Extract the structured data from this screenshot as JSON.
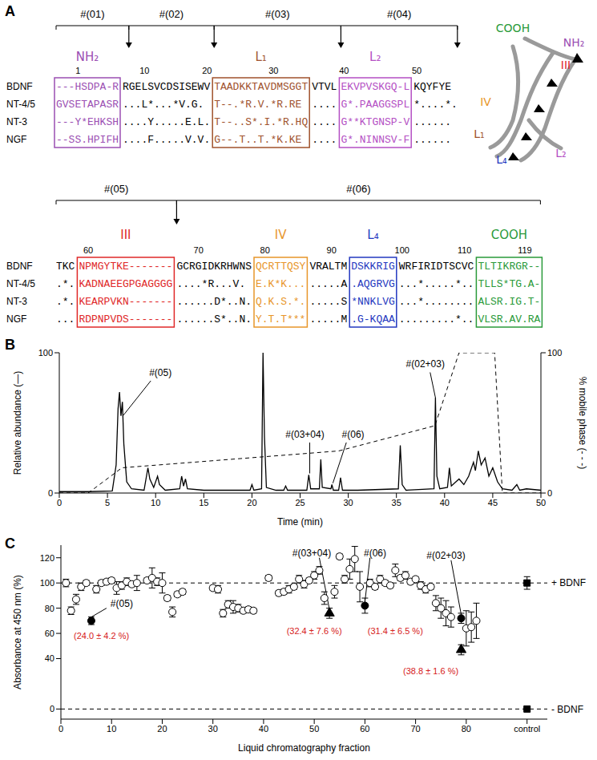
{
  "panel_a": {
    "letter": "A",
    "rows": [
      "BDNF",
      "NT-4/5",
      "NT-3",
      "NGF"
    ],
    "blocks": [
      {
        "fragments": [
          "#(01)",
          "#(02)",
          "#(03)",
          "#(04)"
        ],
        "numbers": [
          1,
          10,
          20,
          30,
          40,
          50
        ],
        "segments": [
          {
            "region": "NH₂",
            "color": "#9b4fb3",
            "seqs": [
              "---HSDPA-R",
              "GVSETAPASR",
              "---Y*EHKSH",
              "--SS.HPIFH"
            ]
          },
          {
            "seqs": [
              "RGELSVCDSISEWV",
              "...L*...*V.G.",
              "....Y.....E.L.",
              "....F.....V.V."
            ]
          },
          {
            "region": "L₁",
            "color": "#a0522d",
            "seqs": [
              "TAADKKTAVDMSGGT",
              "T--.*R.V.*R.RE",
              "T--..S*.I.*R.HQ",
              "G--.T..T.*K.KE"
            ]
          },
          {
            "seqs": [
              "VTVL",
              "....",
              "....",
              "...."
            ]
          },
          {
            "region": "L₂",
            "color": "#b44fc4",
            "seqs": [
              "EKVPVSKGQ-L",
              "G*.PAAGGSPL",
              "G**KTGNSP-V",
              "G*.NINNSV-F"
            ]
          },
          {
            "seqs": [
              "KQYFYE",
              "*....*.",
              "......",
              "......"
            ]
          }
        ]
      },
      {
        "fragments": [
          "#(05)",
          "#(06)"
        ],
        "numbers": [
          60,
          70,
          80,
          90,
          100,
          110,
          119
        ],
        "segments": [
          {
            "seqs": [
              "TKC",
              ".*.",
              ".*.",
              "..."
            ]
          },
          {
            "region": "III",
            "color": "#e02828",
            "seqs": [
              "NPMGYTKE-------",
              "KADNAEEGPGAGGGG",
              "KEARPVKN-------",
              "RDPNPVDS-------"
            ]
          },
          {
            "seqs": [
              "GCRGIDKRHWNS",
              "....*R...V.",
              "......D*..N.",
              "......S*..N."
            ]
          },
          {
            "region": "IV",
            "color": "#e8962a",
            "seqs": [
              "QCRTTQSY",
              "E.K*K...",
              "Q.K.S.*.",
              "Y.T.T***"
            ]
          },
          {
            "seqs": [
              "VRALTM",
              ".....A",
              ".....S",
              ".....M"
            ]
          },
          {
            "region": "L₄",
            "color": "#2338c0",
            "seqs": [
              "DSKKRIG",
              ".AQGRVG",
              "*NNKLVG",
              ".G-KQAA"
            ]
          },
          {
            "seqs": [
              "WRFIRIDTSCVC",
              "...*.....*..",
              "...*........",
              ".........*.."
            ]
          },
          {
            "region": "COOH",
            "color": "#2a9a3a",
            "seqs": [
              "TLTIKRGR--",
              "TLLS*TG.A-",
              "ALSR.IG.T-",
              "VLSR.AV.RA"
            ]
          }
        ]
      }
    ],
    "structure_labels": [
      {
        "text": "COOH",
        "color": "#2a9a3a"
      },
      {
        "text": "NH₂",
        "color": "#9b4fb3"
      },
      {
        "text": "III",
        "color": "#e02828"
      },
      {
        "text": "IV",
        "color": "#e8962a"
      },
      {
        "text": "L₁",
        "color": "#a0522d"
      },
      {
        "text": "L₂",
        "color": "#b44fc4"
      },
      {
        "text": "L₄",
        "color": "#2338c0"
      }
    ]
  },
  "chart_data": [
    {
      "panel": "B",
      "type": "line",
      "xlabel": "Time (min)",
      "ylabel": "Relative abundance (—)",
      "y2label": "% mobile phase (- - -)",
      "xlim": [
        0,
        50
      ],
      "xticks": [
        0,
        5,
        10,
        15,
        20,
        25,
        30,
        35,
        40,
        45,
        50
      ],
      "ylim": [
        0,
        100
      ],
      "yticks": [
        0,
        100
      ],
      "y2lim": [
        0,
        100
      ],
      "y2ticks": [
        0,
        100
      ],
      "series": [
        {
          "axis": "y",
          "color": "#000000",
          "line_style": "solid",
          "x": [
            0,
            3,
            5.5,
            5.9,
            6.1,
            6.25,
            6.4,
            6.55,
            6.7,
            7,
            7.5,
            8.8,
            9.2,
            9.4,
            9.8,
            10.2,
            10.4,
            11,
            12.5,
            12.7,
            12.9,
            13.1,
            13.3,
            15,
            19.8,
            20,
            20.2,
            21,
            21.15,
            21.3,
            21.5,
            22.5,
            23.3,
            23.5,
            23.7,
            25.7,
            25.9,
            26.1,
            27,
            27.15,
            27.3,
            28.2,
            28.3,
            28.45,
            29,
            29.2,
            29.4,
            31,
            35.2,
            35.4,
            35.6,
            36,
            38.9,
            39.05,
            39.2,
            39.5,
            40.3,
            40.5,
            40.7,
            41.5,
            42,
            42.5,
            43,
            43.2,
            43.5,
            43.8,
            44.2,
            44.6,
            45,
            45.5,
            46,
            47,
            47.5,
            47.8,
            48.5,
            50
          ],
          "values": [
            1,
            1,
            1.5,
            20,
            60,
            72,
            55,
            65,
            35,
            8,
            3,
            2,
            18,
            10,
            4,
            12,
            6,
            2,
            3,
            12,
            5,
            10,
            3,
            2,
            2,
            6,
            2,
            3,
            100,
            40,
            4,
            2,
            2,
            5,
            2,
            2,
            13,
            3,
            3,
            24,
            4,
            3,
            6,
            2,
            2,
            11,
            2,
            2,
            3,
            34,
            6,
            2,
            3,
            68,
            12,
            3,
            4,
            18,
            5,
            10,
            6,
            12,
            22,
            16,
            30,
            20,
            25,
            12,
            18,
            8,
            3,
            2,
            6,
            2,
            3,
            2
          ]
        },
        {
          "axis": "y2",
          "color": "#000000",
          "line_style": "dashed",
          "x": [
            0,
            3,
            6.5,
            29,
            39,
            41.5,
            45.2,
            46,
            50
          ],
          "values": [
            0,
            0,
            18,
            30,
            48,
            100,
            100,
            0,
            0
          ]
        }
      ],
      "annotations": [
        {
          "text": "#(05)",
          "x": 6.6,
          "y": 55
        },
        {
          "text": "#(03+04)",
          "x": 26,
          "y": 14
        },
        {
          "text": "#(06)",
          "x": 28.4,
          "y": 7
        },
        {
          "text": "#(02+03)",
          "x": 39.05,
          "y": 68
        }
      ]
    },
    {
      "panel": "C",
      "type": "scatter",
      "xlabel": "Liquid chromatography fraction",
      "ylabel": "Absorbance at 450 nm (%)",
      "xlim": [
        0,
        96
      ],
      "xticks": [
        0,
        10,
        20,
        30,
        40,
        50,
        60,
        70,
        80,
        {
          "value": 92,
          "label": "control"
        }
      ],
      "ylim": [
        -8,
        130
      ],
      "yticks": [
        0,
        40,
        60,
        80,
        100,
        120
      ],
      "series": [
        {
          "marker": "circle_open",
          "color": "#000000",
          "x": [
            1,
            2,
            3,
            4,
            5,
            7,
            8,
            9,
            10,
            11,
            12,
            13,
            14,
            15,
            17,
            18,
            19,
            20,
            21,
            22,
            23,
            24,
            30,
            31,
            32,
            33,
            34,
            35,
            36,
            37,
            38,
            41,
            43,
            44,
            45,
            46,
            47,
            48,
            49,
            50,
            51,
            52,
            54,
            55,
            56,
            57,
            58,
            59,
            61,
            62,
            63,
            64,
            65,
            66,
            67,
            68,
            69,
            70,
            71,
            72,
            73,
            74,
            75,
            76,
            77,
            80,
            81,
            82
          ],
          "values": [
            100,
            78,
            87,
            97,
            100,
            95,
            100,
            101,
            102,
            96,
            98,
            101,
            99,
            100,
            102,
            104,
            101,
            100,
            88,
            77,
            91,
            93,
            96,
            95,
            76,
            83,
            81,
            80,
            78,
            79,
            78,
            104,
            92,
            93,
            95,
            97,
            103,
            99,
            102,
            106,
            110,
            88,
            93,
            121,
            103,
            111,
            119,
            97,
            100,
            97,
            103,
            100,
            98,
            110,
            104,
            106,
            101,
            103,
            98,
            95,
            97,
            84,
            80,
            76,
            73,
            64,
            65,
            70
          ],
          "errors": [
            3,
            3,
            4,
            3,
            2,
            3,
            2,
            2,
            2,
            5,
            3,
            3,
            2,
            6,
            2,
            8,
            3,
            8,
            2,
            4,
            2,
            2,
            2,
            3,
            3,
            3,
            5,
            3,
            2,
            2,
            2,
            2,
            2,
            2,
            3,
            2,
            3,
            3,
            2,
            3,
            3,
            5,
            5,
            2,
            3,
            8,
            10,
            12,
            3,
            2,
            3,
            2,
            2,
            5,
            2,
            3,
            2,
            2,
            3,
            3,
            2,
            6,
            8,
            10,
            8,
            14,
            12,
            14
          ]
        },
        {
          "marker": "circle",
          "color": "#000000",
          "x": [
            6,
            60,
            79
          ],
          "values": [
            70,
            82,
            72
          ],
          "errors": [
            3,
            6,
            4
          ]
        },
        {
          "marker": "triangle",
          "color": "#000000",
          "x": [
            53,
            79
          ],
          "values": [
            76,
            47
          ],
          "errors": [
            4,
            4
          ]
        },
        {
          "marker": "square",
          "color": "#000000",
          "x": [
            92,
            92
          ],
          "values": [
            100,
            0
          ],
          "errors": [
            5,
            1
          ]
        }
      ],
      "reference_lines": [
        {
          "y": 100,
          "label": "+ BDNF"
        },
        {
          "y": 0,
          "label": "- BDNF"
        }
      ],
      "annotations": [
        {
          "text": "#(05)",
          "x": 6,
          "y": 70,
          "value_text": "(24.0 ± 4.2 %)",
          "color": "#d62020"
        },
        {
          "text": "#(03+04)",
          "x": 53,
          "y": 76,
          "value_text": "(32.4 ± 7.6 %)",
          "color": "#d62020"
        },
        {
          "text": "#(06)",
          "x": 60,
          "y": 82,
          "value_text": "(31.4 ± 6.5 %)",
          "color": "#d62020"
        },
        {
          "text": "#(02+03)",
          "x": 79,
          "y": 72,
          "value_text": "(38.8 ± 1.6 %)",
          "color": "#d62020"
        }
      ]
    }
  ]
}
